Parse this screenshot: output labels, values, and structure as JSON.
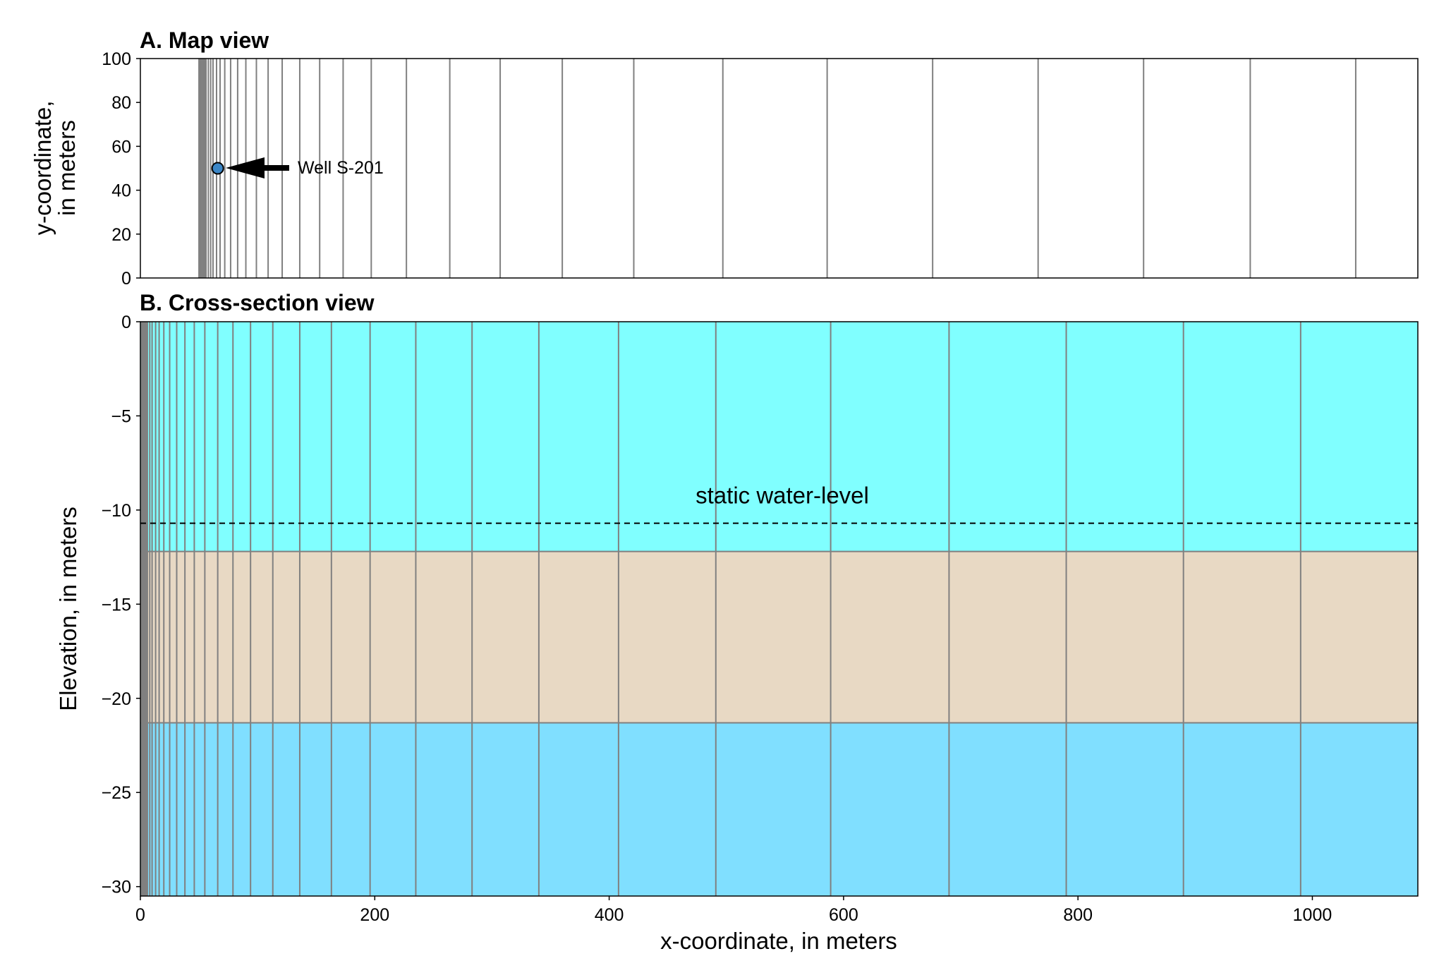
{
  "chart_data": [
    {
      "panel": "A",
      "type": "grid-map",
      "title": "A. Map view",
      "xlabel": "",
      "ylabel": [
        "y-coordinate,",
        "in meters"
      ],
      "xlim": [
        0,
        1090
      ],
      "ylim": [
        0,
        100
      ],
      "yticks": [
        0,
        20,
        40,
        60,
        80,
        100
      ],
      "grid_x": [
        50,
        51,
        52,
        53,
        54,
        55,
        56,
        58,
        60,
        62,
        65,
        68,
        72,
        77,
        83,
        90,
        99,
        109,
        121,
        136,
        153,
        173,
        197,
        227,
        264,
        307,
        360,
        421,
        497,
        586,
        676,
        766,
        856,
        947,
        1037
      ],
      "well": {
        "x": 66,
        "y": 50,
        "color": "#3b86c6",
        "label": "Well S-201"
      }
    },
    {
      "panel": "B",
      "type": "cross-section",
      "title": "B. Cross-section view",
      "xlabel": "x-coordinate, in meters",
      "ylabel": "Elevation, in meters",
      "xlim": [
        0,
        1090
      ],
      "ylim": [
        -30.5,
        0
      ],
      "xticks": [
        0,
        200,
        400,
        600,
        800,
        1000
      ],
      "yticks": [
        0,
        -5,
        -10,
        -15,
        -20,
        -25,
        -30
      ],
      "grid_x": [
        1,
        2,
        3,
        4,
        5,
        6,
        8,
        10,
        13,
        16,
        20,
        25,
        31,
        38,
        46,
        55,
        66,
        79,
        94,
        113,
        136,
        163,
        196,
        235,
        283,
        340,
        408,
        491,
        589,
        690,
        790,
        890,
        990
      ],
      "layers": [
        {
          "top": 0,
          "bottom": -12.2,
          "color": "#80ffff"
        },
        {
          "top": -12.2,
          "bottom": -21.3,
          "color": "#e8d9c4"
        },
        {
          "top": -21.3,
          "bottom": -30.5,
          "color": "#80dfff"
        }
      ],
      "static_water_level": {
        "elevation": -10.7,
        "label": "static water-level"
      }
    }
  ]
}
